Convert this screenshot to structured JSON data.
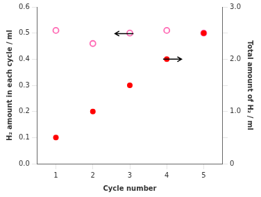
{
  "chart_data": {
    "type": "scatter",
    "x": [
      1,
      2,
      3,
      4,
      5
    ],
    "series": [
      {
        "color": "#FF0000",
        "marker": "circle",
        "values": [
          0.1,
          0.2,
          0.3,
          0.4,
          0.5
        ]
      },
      {
        "color": "#FF69B4",
        "marker": "open_circle",
        "values": [
          0.51,
          0.46,
          0.5,
          0.51,
          0.5
        ]
      }
    ],
    "xlabel": "Cycle number",
    "ylabel": "H₂ amount in each cycle / ml",
    "y2label": "Total amount of H₂ / ml",
    "xlim": [
      0.5,
      5.5
    ],
    "xticks": [
      1,
      2,
      3,
      4,
      5
    ],
    "ylim": [
      0,
      0.6
    ],
    "yticks": [
      {
        "value": 0,
        "label": "0.0"
      },
      0.1,
      0.2,
      0.3,
      0.4,
      0.5,
      0.6
    ],
    "y2lim": [
      0,
      3.0
    ],
    "y2ticks": [
      0,
      {
        "value": 0.5,
        "label": ""
      },
      {
        "value": 1.0,
        "label": "1.0"
      },
      {
        "value": 1.5,
        "label": ""
      },
      {
        "value": 2.0,
        "label": "2.0"
      },
      {
        "value": 2.5,
        "label": ""
      },
      {
        "value": 3.0,
        "label": "3.0"
      }
    ],
    "arrows": [
      {
        "from": [
          3.1,
          0.498
        ],
        "to": [
          2.6,
          0.498
        ],
        "color": "#000000"
      },
      {
        "from": [
          3.9,
          0.4
        ],
        "to": [
          4.4,
          0.4
        ],
        "color": "#000000"
      }
    ],
    "grid": false,
    "legend": false
  }
}
